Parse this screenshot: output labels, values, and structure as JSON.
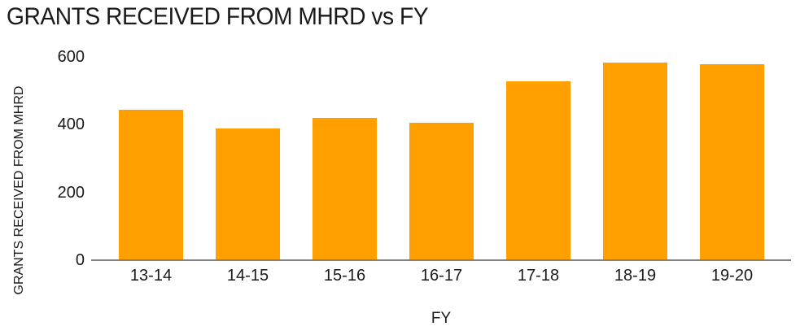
{
  "page": {
    "background_color": "#FFFFFF"
  },
  "chart_data": {
    "type": "bar",
    "title": "GRANTS RECEIVED FROM MHRD vs FY",
    "xlabel": "FY",
    "ylabel": "GRANTS RECEIVED FROM MHRD",
    "categories": [
      "13-14",
      "14-15",
      "15-16",
      "16-17",
      "17-18",
      "18-19",
      "19-20"
    ],
    "values": [
      445,
      390,
      420,
      405,
      528,
      583,
      578
    ],
    "yticks": [
      0,
      200,
      400,
      600
    ],
    "ylim": [
      0,
      600
    ],
    "bar_color": "#FFA000",
    "axis_line_color": "#808080",
    "text_color": "#1A1A1A",
    "grid": false,
    "legend_position": "none"
  }
}
